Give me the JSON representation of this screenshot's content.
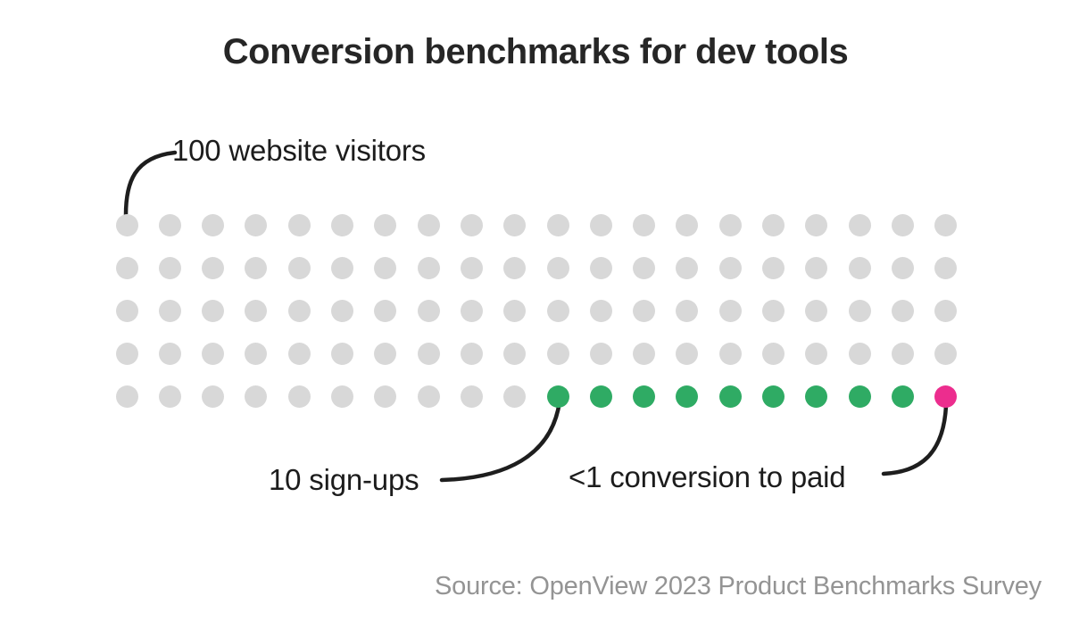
{
  "title": "Conversion benchmarks for dev tools",
  "annotations": {
    "visitors": "100 website visitors",
    "signups": "10 sign-ups",
    "paid": "<1 conversion to paid"
  },
  "source": "Source: OpenView 2023 Product Benchmarks Survey",
  "colors": {
    "visitor_dot": "#d8d8d8",
    "signup_dot": "#2fab64",
    "paid_dot": "#ec2d8e",
    "connector_line": "#1e1e1e",
    "title_text": "#262626",
    "label_text": "#1c1c1c",
    "source_text": "#949494"
  },
  "chart_data": {
    "type": "pictogram",
    "title": "Conversion benchmarks for dev tools",
    "rows": 5,
    "cols": 20,
    "total_dots": 100,
    "dot_order": "row-major, colored segment at end of last row",
    "segments": [
      {
        "name": "visitor",
        "label": "100 website visitors",
        "value": "100",
        "dot_count": 90,
        "color": "#d8d8d8"
      },
      {
        "name": "signup",
        "label": "10 sign-ups",
        "value": "10",
        "dot_count": 9,
        "color": "#2fab64"
      },
      {
        "name": "paid",
        "label": "<1 conversion to paid",
        "value": "<1",
        "dot_count": 1,
        "color": "#ec2d8e"
      }
    ],
    "source": "Source: OpenView 2023 Product Benchmarks Survey",
    "legend_position": "inline annotations with curved connector lines",
    "grid": false
  }
}
